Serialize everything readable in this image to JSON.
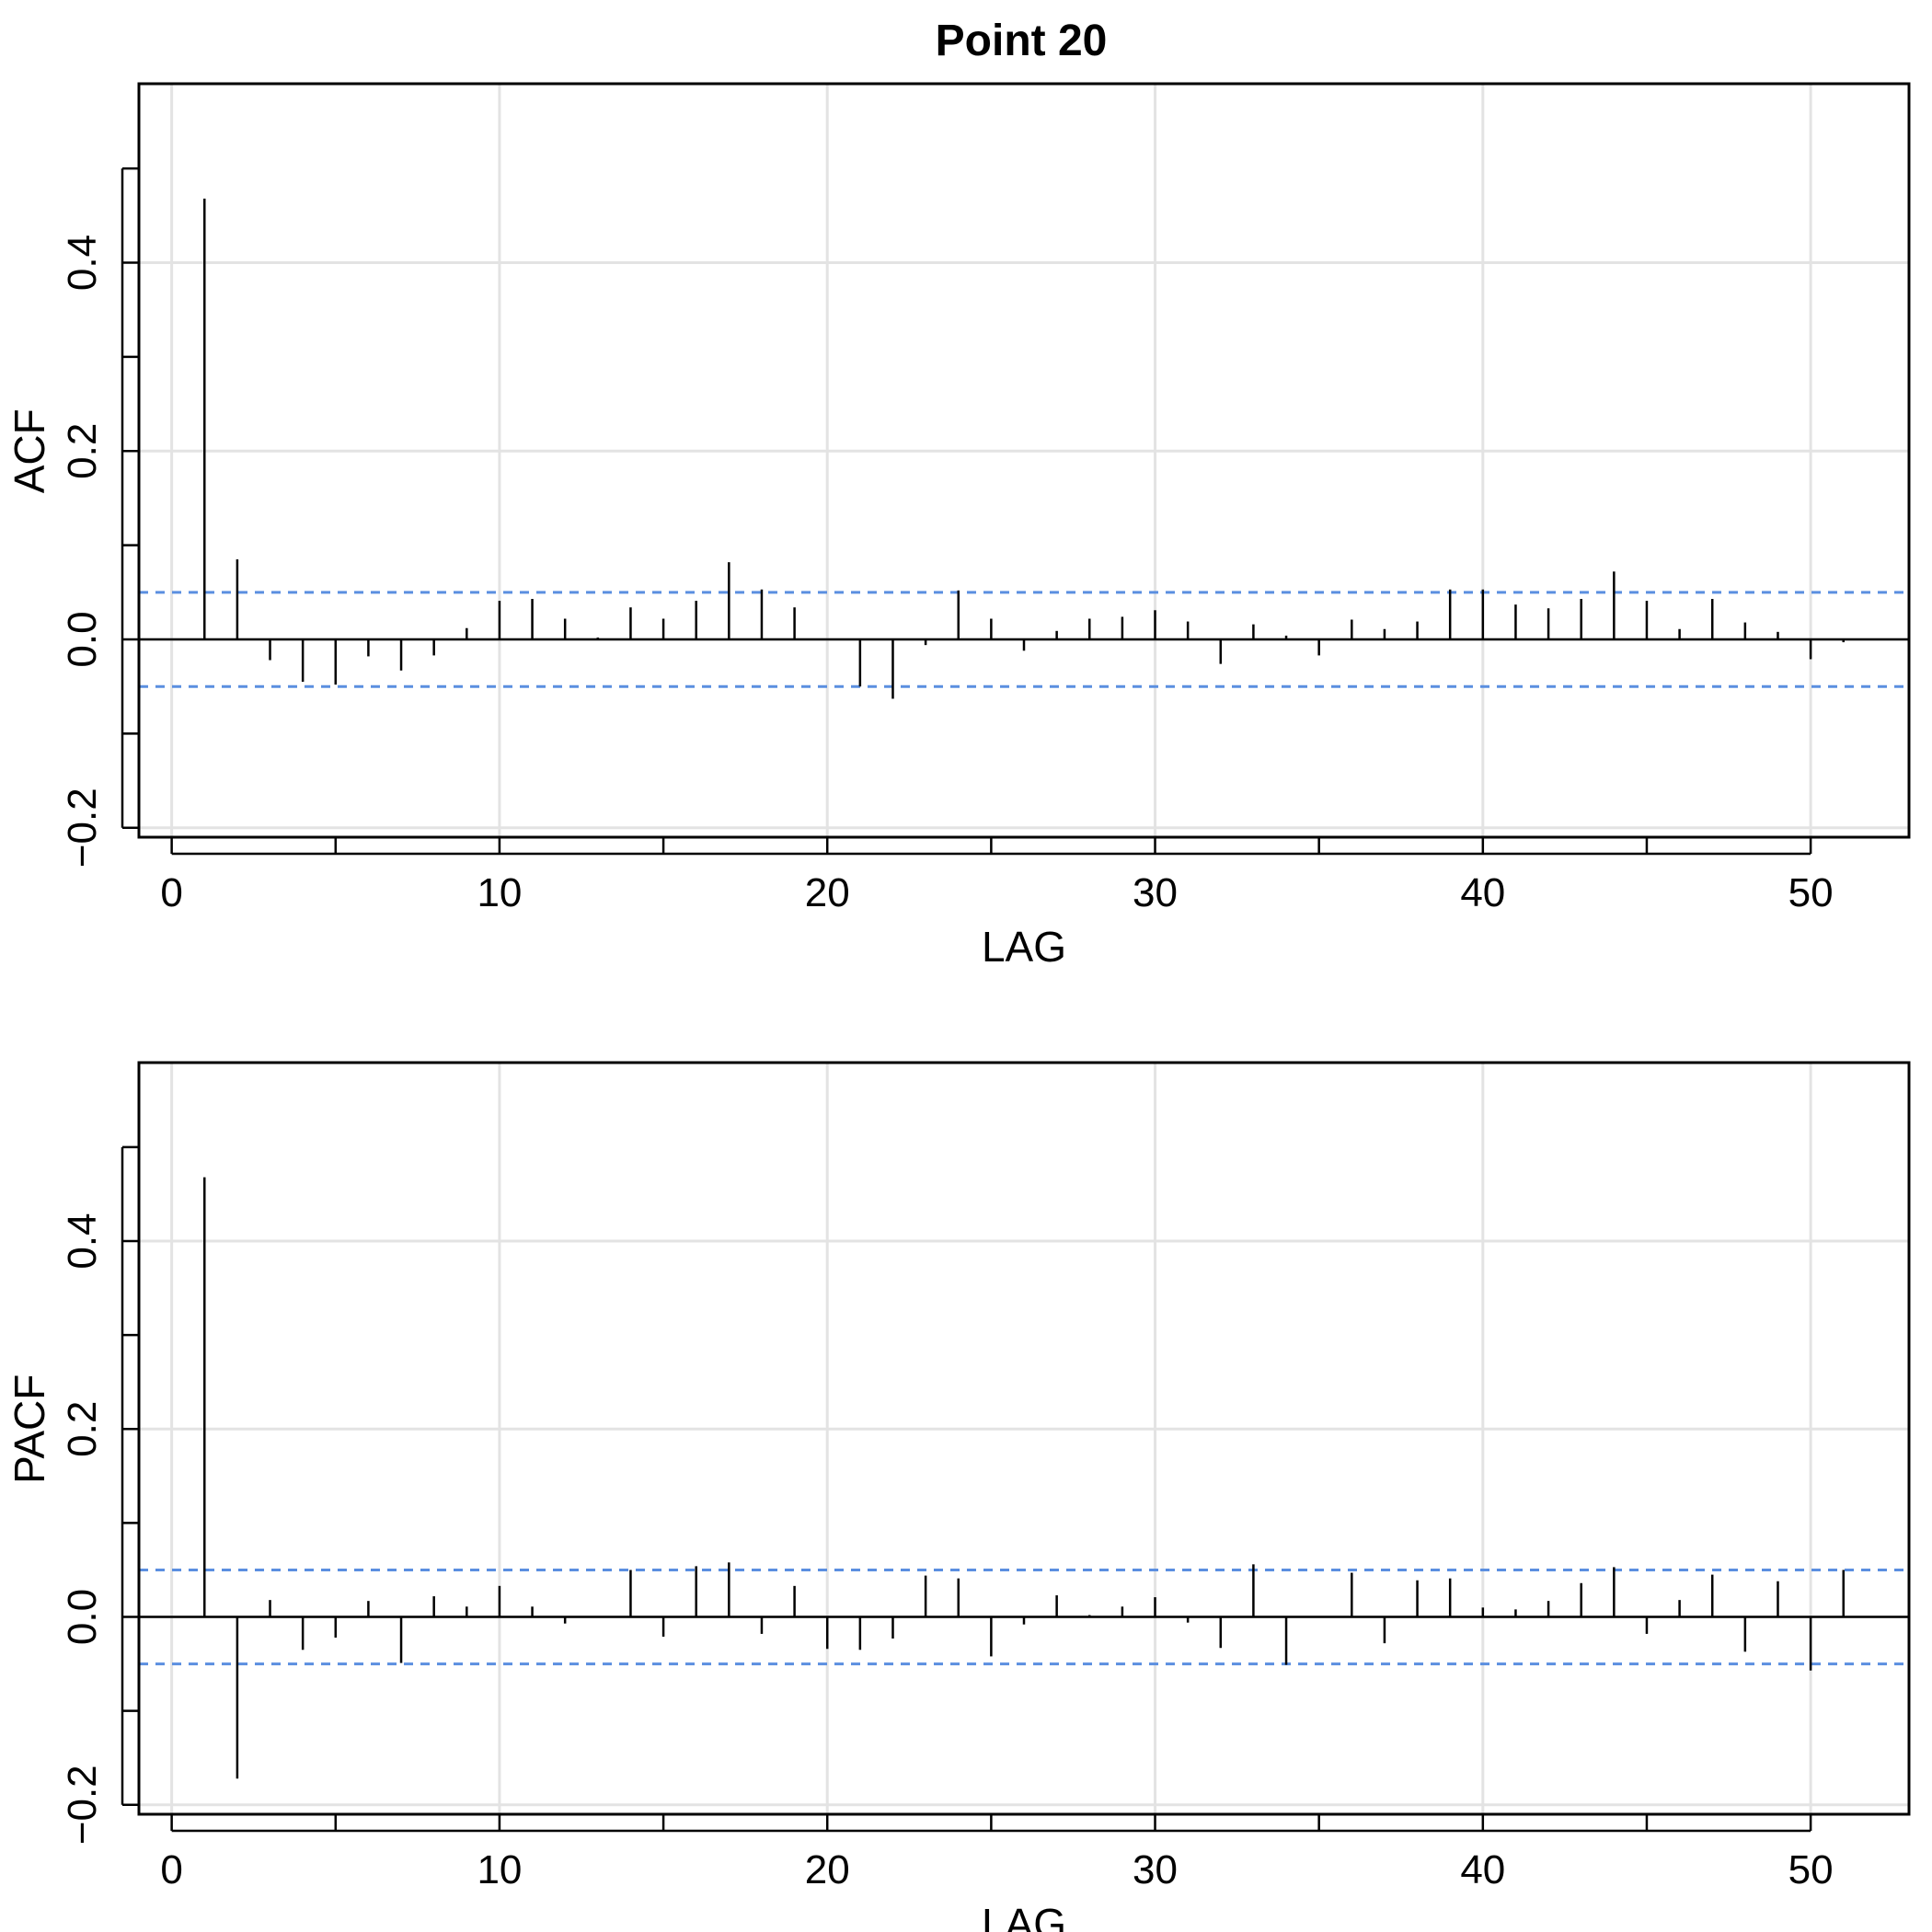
{
  "figure": {
    "title": "Point  20"
  },
  "chart_data": [
    {
      "type": "bar",
      "xlabel": "LAG",
      "ylabel": "ACF",
      "xlim": [
        -1,
        53
      ],
      "ylim": [
        -0.21,
        0.59
      ],
      "xticks": [
        0,
        10,
        20,
        30,
        40,
        50
      ],
      "xtick_labels": [
        "0",
        "10",
        "20",
        "30",
        "40",
        "50"
      ],
      "yticks": [
        -0.2,
        0.0,
        0.2,
        0.4
      ],
      "ytick_labels": [
        "−0.2",
        "0.0",
        "0.2",
        "0.4"
      ],
      "grid": true,
      "confidence_bound": 0.05,
      "x": [
        1,
        2,
        3,
        4,
        5,
        6,
        7,
        8,
        9,
        10,
        11,
        12,
        13,
        14,
        15,
        16,
        17,
        18,
        19,
        20,
        21,
        22,
        23,
        24,
        25,
        26,
        27,
        28,
        29,
        30,
        31,
        32,
        33,
        34,
        35,
        36,
        37,
        38,
        39,
        40,
        41,
        42,
        43,
        44,
        45,
        46,
        47,
        48,
        49,
        50,
        51
      ],
      "values": [
        0.468,
        0.085,
        -0.022,
        -0.045,
        -0.048,
        -0.018,
        -0.033,
        -0.017,
        0.012,
        0.041,
        0.043,
        0.022,
        0.002,
        0.034,
        0.022,
        0.041,
        0.082,
        0.053,
        0.034,
        0.0,
        -0.05,
        -0.063,
        -0.006,
        0.052,
        0.022,
        -0.012,
        0.009,
        0.022,
        0.024,
        0.031,
        0.019,
        -0.026,
        0.016,
        0.004,
        -0.017,
        0.021,
        0.011,
        0.019,
        0.053,
        0.053,
        0.037,
        0.033,
        0.043,
        0.072,
        0.041,
        0.011,
        0.043,
        0.018,
        0.008,
        -0.021,
        -0.003
      ]
    },
    {
      "type": "bar",
      "xlabel": "LAG",
      "ylabel": "PACF",
      "xlim": [
        -1,
        53
      ],
      "ylim": [
        -0.21,
        0.59
      ],
      "xticks": [
        0,
        10,
        20,
        30,
        40,
        50
      ],
      "xtick_labels": [
        "0",
        "10",
        "20",
        "30",
        "40",
        "50"
      ],
      "yticks": [
        -0.2,
        0.0,
        0.2,
        0.4
      ],
      "ytick_labels": [
        "−0.2",
        "0.0",
        "0.2",
        "0.4"
      ],
      "grid": true,
      "confidence_bound": 0.05,
      "x": [
        1,
        2,
        3,
        4,
        5,
        6,
        7,
        8,
        9,
        10,
        11,
        12,
        13,
        14,
        15,
        16,
        17,
        18,
        19,
        20,
        21,
        22,
        23,
        24,
        25,
        26,
        27,
        28,
        29,
        30,
        31,
        32,
        33,
        34,
        35,
        36,
        37,
        38,
        39,
        40,
        41,
        42,
        43,
        44,
        45,
        46,
        47,
        48,
        49,
        50,
        51
      ],
      "values": [
        0.468,
        -0.172,
        0.018,
        -0.035,
        -0.022,
        0.017,
        -0.049,
        0.022,
        0.011,
        0.033,
        0.011,
        -0.007,
        0.0,
        0.05,
        -0.021,
        0.054,
        0.058,
        -0.018,
        0.033,
        -0.034,
        -0.035,
        -0.023,
        0.044,
        0.041,
        -0.042,
        -0.008,
        0.023,
        0.002,
        0.011,
        0.021,
        -0.006,
        -0.033,
        0.056,
        -0.051,
        0.0,
        0.047,
        -0.028,
        0.039,
        0.041,
        0.01,
        0.008,
        0.017,
        0.036,
        0.053,
        -0.018,
        0.018,
        0.045,
        -0.037,
        0.038,
        -0.057,
        0.05
      ]
    }
  ]
}
